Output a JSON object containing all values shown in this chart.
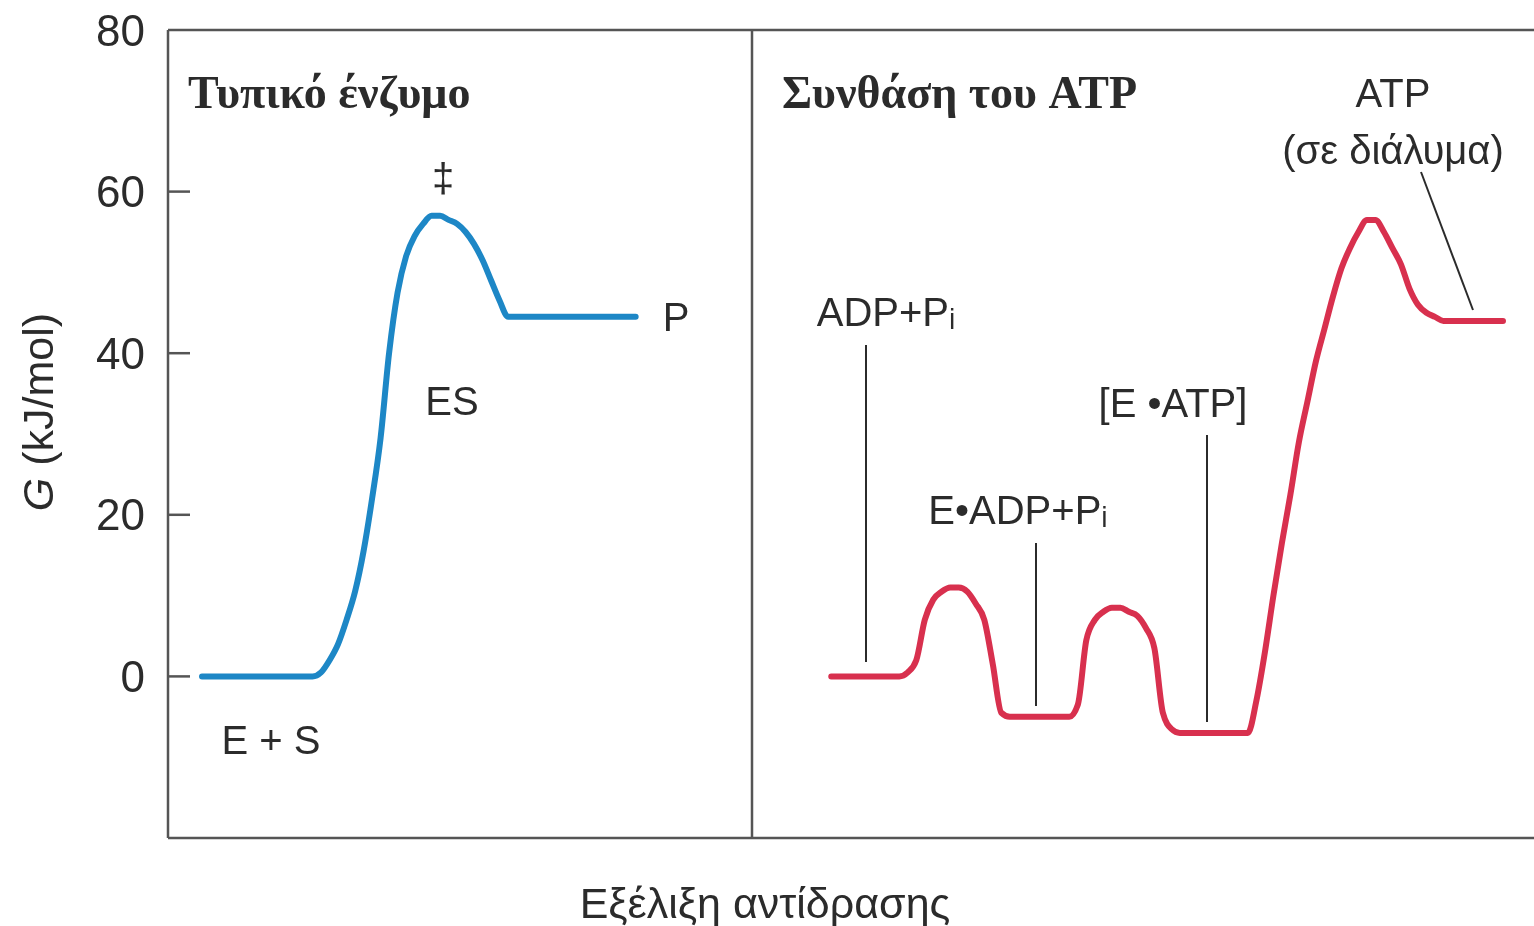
{
  "chart_data": {
    "type": "line",
    "xlabel": "Εξέλιξη αντίδρασης",
    "ylabel": "G (kJ/mol)",
    "categories": [
      null,
      null,
      null,
      null,
      null,
      null,
      null,
      null,
      null,
      null,
      null,
      null,
      null,
      null,
      null,
      null,
      null,
      null,
      null,
      null,
      null,
      null,
      null,
      null,
      null,
      null,
      null,
      null,
      null,
      null,
      null,
      null,
      null,
      null,
      null,
      null,
      null,
      null,
      null,
      null,
      null,
      null,
      null,
      null,
      null,
      null,
      null,
      null,
      null,
      null,
      null,
      null,
      null,
      null,
      null,
      null,
      null,
      null,
      null,
      null,
      null,
      null,
      null,
      null,
      null,
      null,
      null,
      null,
      null,
      null,
      null,
      null,
      null,
      null,
      null,
      null,
      null,
      null,
      null,
      null,
      null,
      null,
      null,
      null,
      null,
      null,
      null,
      null,
      null,
      null,
      null,
      null,
      null,
      null,
      null,
      null,
      null,
      null,
      null,
      null,
      null,
      null,
      null,
      null,
      null,
      null,
      null,
      null,
      null,
      null,
      null,
      null,
      null,
      null,
      null,
      null,
      null,
      null,
      null,
      null,
      null,
      null,
      null,
      null,
      null,
      null,
      null,
      null,
      null,
      null,
      null,
      null,
      null,
      null,
      null,
      null,
      null,
      null,
      null,
      null,
      null,
      null,
      null,
      null,
      null,
      null,
      null,
      null,
      null,
      null,
      null,
      null,
      null,
      null,
      null,
      null,
      null,
      null,
      null,
      null,
      null,
      null
    ],
    "series": [
      {
        "color": "#1d87c6",
        "values": [
          null,
          null,
          null,
          null,
          0,
          0,
          0,
          0,
          0,
          0,
          0,
          0,
          0,
          0,
          0,
          0,
          0,
          0,
          0.5,
          2,
          4,
          7,
          10.5,
          15.5,
          22,
          29.5,
          40,
          47.5,
          52,
          54.5,
          56,
          57,
          57,
          56.5,
          56,
          55,
          53.5,
          51.5,
          49,
          46.5,
          44.5,
          44.5,
          44.5,
          44.5,
          44.5,
          44.5,
          44.5,
          44.5,
          44.5,
          44.5,
          44.5,
          44.5,
          44.5,
          44.5,
          44.5,
          44.5,
          null,
          null,
          null,
          null,
          null,
          null,
          null,
          null,
          null,
          null,
          null,
          null,
          null,
          null,
          null,
          null,
          null,
          null,
          null,
          null,
          null,
          null,
          null,
          null,
          null,
          null,
          null,
          null,
          null,
          null,
          null,
          null,
          null,
          null,
          null,
          null,
          null,
          null,
          null,
          null,
          null,
          null,
          null,
          null,
          null,
          null,
          null,
          null,
          null,
          null,
          null,
          null,
          null,
          null,
          null,
          null,
          null,
          null,
          null,
          null,
          null,
          null,
          null,
          null,
          null,
          null,
          null,
          null,
          null,
          null,
          null,
          null,
          null,
          null,
          null,
          null,
          null,
          null,
          null,
          null,
          null,
          null,
          null,
          null,
          null,
          null,
          null,
          null,
          null,
          null,
          null,
          null,
          null,
          null,
          null,
          null,
          null,
          null,
          null,
          null,
          null,
          null,
          null,
          null,
          null,
          null
        ]
      },
      {
        "color": "#d8304e",
        "values": [
          null,
          null,
          null,
          null,
          null,
          null,
          null,
          null,
          null,
          null,
          null,
          null,
          null,
          null,
          null,
          null,
          null,
          null,
          null,
          null,
          null,
          null,
          null,
          null,
          null,
          null,
          null,
          null,
          null,
          null,
          null,
          null,
          null,
          null,
          null,
          null,
          null,
          null,
          null,
          null,
          null,
          null,
          null,
          null,
          null,
          null,
          null,
          null,
          null,
          null,
          null,
          null,
          null,
          null,
          null,
          null,
          null,
          null,
          null,
          null,
          null,
          null,
          null,
          null,
          null,
          null,
          null,
          null,
          null,
          null,
          null,
          null,
          null,
          null,
          null,
          null,
          null,
          null,
          0,
          0,
          0,
          0,
          0,
          0,
          0,
          0,
          0,
          0.5,
          2,
          7,
          9.5,
          10.5,
          11,
          11,
          10.5,
          9,
          7,
          1.5,
          -4.5,
          -5,
          -5,
          -5,
          -5,
          -5,
          -5,
          -5,
          -5,
          -3.5,
          4.5,
          7,
          8,
          8.5,
          8.5,
          8,
          7.5,
          6,
          3.5,
          -4.5,
          -6.5,
          -7,
          -7,
          -7,
          -7,
          -7,
          -7,
          -7,
          -7,
          -7,
          -3,
          3,
          10,
          16.5,
          22.5,
          29,
          34,
          39,
          43,
          47,
          50.5,
          53,
          55,
          56.5,
          56.5,
          55,
          53,
          51,
          48,
          46,
          45,
          44.5,
          44,
          44,
          44,
          44,
          44,
          44,
          44,
          44,
          null,
          null,
          null,
          null
        ]
      }
    ],
    "ylim": [
      -20,
      80
    ],
    "yticks": [
      0,
      20,
      40,
      60,
      80
    ],
    "tick_labels": "y",
    "annotations": [
      "Τυπικό ένζυμο",
      "Συνθάση του ATP",
      "‡",
      "ES",
      "P",
      "E + S",
      "ADP+Pᵢ",
      "E•ADP+Pᵢ",
      "[E •ATP]",
      "ATP\n(σε διάλυμα)"
    ]
  }
}
